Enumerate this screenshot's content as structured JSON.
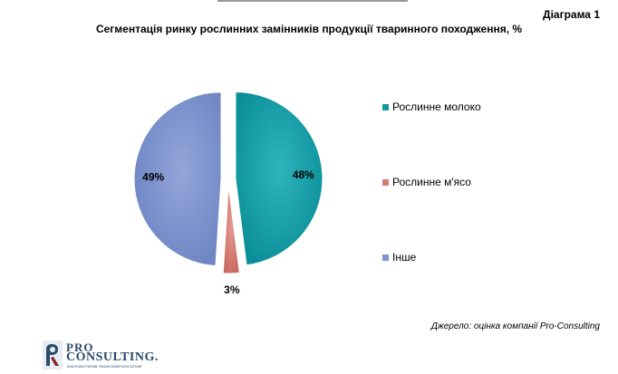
{
  "header": {
    "diagram_label": "Діаграма 1",
    "title": "Сегментація ринку рослинних замінників продукції тваринного походження, %"
  },
  "chart_data": {
    "type": "pie",
    "title": "Сегментація ринку рослинних замінників продукції тваринного походження, %",
    "categories": [
      "Рослинне молоко",
      "Рослинне м'ясо",
      "Інше"
    ],
    "values": [
      48,
      3,
      49
    ],
    "data_labels": [
      "48%",
      "3%",
      "49%"
    ],
    "colors": [
      "#0f9aa3",
      "#d97b72",
      "#7b93cf"
    ],
    "exploded": true,
    "legend_position": "right"
  },
  "legend": {
    "items": [
      {
        "label": "Рослинне молоко",
        "color": "#0f9aa3"
      },
      {
        "label": "Рослинне м'ясо",
        "color": "#d97b72"
      },
      {
        "label": "Інше",
        "color": "#7b93cf"
      }
    ]
  },
  "source": "Джерело: оцінка компанії Pro-Consulting",
  "logo": {
    "line1": "PRO",
    "line2": "CONSULTING.",
    "tagline": "АНАЛІТИКА РИНКІВ, ФІНАНСОВИЙ КОНСАЛТИНГ"
  }
}
